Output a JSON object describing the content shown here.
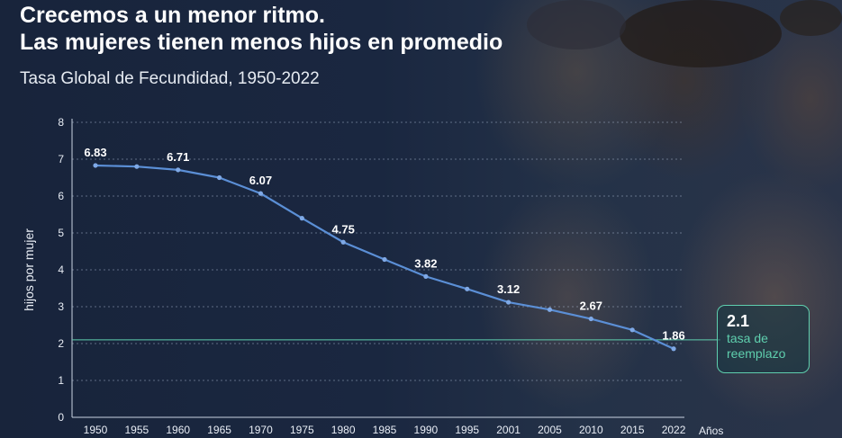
{
  "title_line1": "Crecemos a un menor ritmo.",
  "title_line2": "Las mujeres tienen menos hijos en promedio",
  "subtitle": "Tasa Global de Fecundidad, 1950-2022",
  "replacement": {
    "value": "2.1",
    "label_line1": "tasa de",
    "label_line2": "reemplazo"
  },
  "colors": {
    "line": "#5b8fd6",
    "replacement": "#5fcfae",
    "text": "#ffffff"
  },
  "chart_data": {
    "type": "line",
    "title": "Crecemos a un menor ritmo. Las mujeres tienen menos hijos en promedio",
    "subtitle": "Tasa Global de Fecundidad, 1950-2022",
    "xlabel": "Años",
    "ylabel": "hijos por mujer",
    "ylim": [
      0,
      8
    ],
    "yticks": [
      0,
      1,
      2,
      3,
      4,
      5,
      6,
      7,
      8
    ],
    "grid": true,
    "categories": [
      "1950",
      "1955",
      "1960",
      "1965",
      "1970",
      "1975",
      "1980",
      "1985",
      "1990",
      "1995",
      "2001",
      "2005",
      "2010",
      "2015",
      "2022"
    ],
    "series": [
      {
        "values": [
          6.83,
          6.8,
          6.71,
          6.5,
          6.07,
          5.4,
          4.75,
          4.28,
          3.82,
          3.48,
          3.12,
          2.92,
          2.67,
          2.37,
          1.86
        ],
        "labels": [
          "6.83",
          "",
          "6.71",
          "",
          "6.07",
          "",
          "4.75",
          "",
          "3.82",
          "",
          "3.12",
          "",
          "2.67",
          "",
          "1.86"
        ]
      }
    ],
    "reference_line": {
      "value": 2.1,
      "label": "2.1 tasa de reemplazo"
    }
  }
}
